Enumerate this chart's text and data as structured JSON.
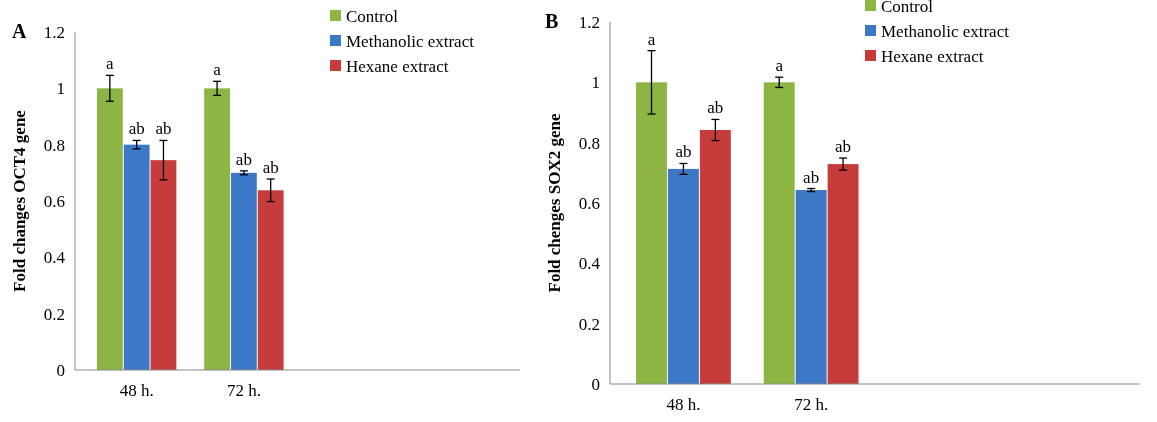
{
  "chart_data": [
    {
      "type": "bar",
      "title": "A",
      "ylabel": "Fold changes OCT4 gene",
      "categories": [
        "48 h.",
        "72 h.",
        null,
        null
      ],
      "ylim": [
        0,
        1.2
      ],
      "yticks": [
        0,
        0.2,
        0.4,
        0.6,
        0.8,
        1,
        1.2
      ],
      "legend": "top right",
      "series": [
        {
          "name": "Control",
          "color": "#8cb543",
          "values": [
            1.0,
            1.0,
            null,
            null
          ],
          "errors": [
            0.046,
            0.025,
            null,
            null
          ],
          "value_labels": [
            "a",
            "a",
            null,
            null
          ]
        },
        {
          "name": "Methanolic extract",
          "color": "#3d78c6",
          "values": [
            0.8,
            0.7,
            null,
            null
          ],
          "errors": [
            0.015,
            0.007,
            null,
            null
          ],
          "value_labels": [
            "ab",
            "ab",
            null,
            null
          ]
        },
        {
          "name": "Hexane extract",
          "color": "#c63c3a",
          "values": [
            0.745,
            0.638,
            null,
            null
          ],
          "errors": [
            0.07,
            0.04,
            null,
            null
          ],
          "value_labels": [
            "ab",
            "ab",
            null,
            null
          ]
        }
      ]
    },
    {
      "type": "bar",
      "title": "B",
      "ylabel": "Fold chenges SOX2 gene",
      "categories": [
        "48 h.",
        "72 h.",
        null,
        null
      ],
      "ylim": [
        0,
        1.2
      ],
      "yticks": [
        0,
        0.2,
        0.4,
        0.6,
        0.8,
        1,
        1.2
      ],
      "legend": "top right",
      "series": [
        {
          "name": "Control",
          "color": "#8cb543",
          "values": [
            1.0,
            1.0,
            null,
            null
          ],
          "errors": [
            0.105,
            0.017,
            null,
            null
          ],
          "value_labels": [
            "a",
            "a",
            null,
            null
          ]
        },
        {
          "name": "Methanolic extract",
          "color": "#3d78c6",
          "values": [
            0.713,
            0.643,
            null,
            null
          ],
          "errors": [
            0.018,
            0.005,
            null,
            null
          ],
          "value_labels": [
            "ab",
            "ab",
            null,
            null
          ]
        },
        {
          "name": "Hexane extract",
          "color": "#c63c3a",
          "values": [
            0.842,
            0.729,
            null,
            null
          ],
          "errors": [
            0.035,
            0.02,
            null,
            null
          ],
          "value_labels": [
            "ab",
            "ab",
            null,
            null
          ]
        }
      ]
    }
  ]
}
